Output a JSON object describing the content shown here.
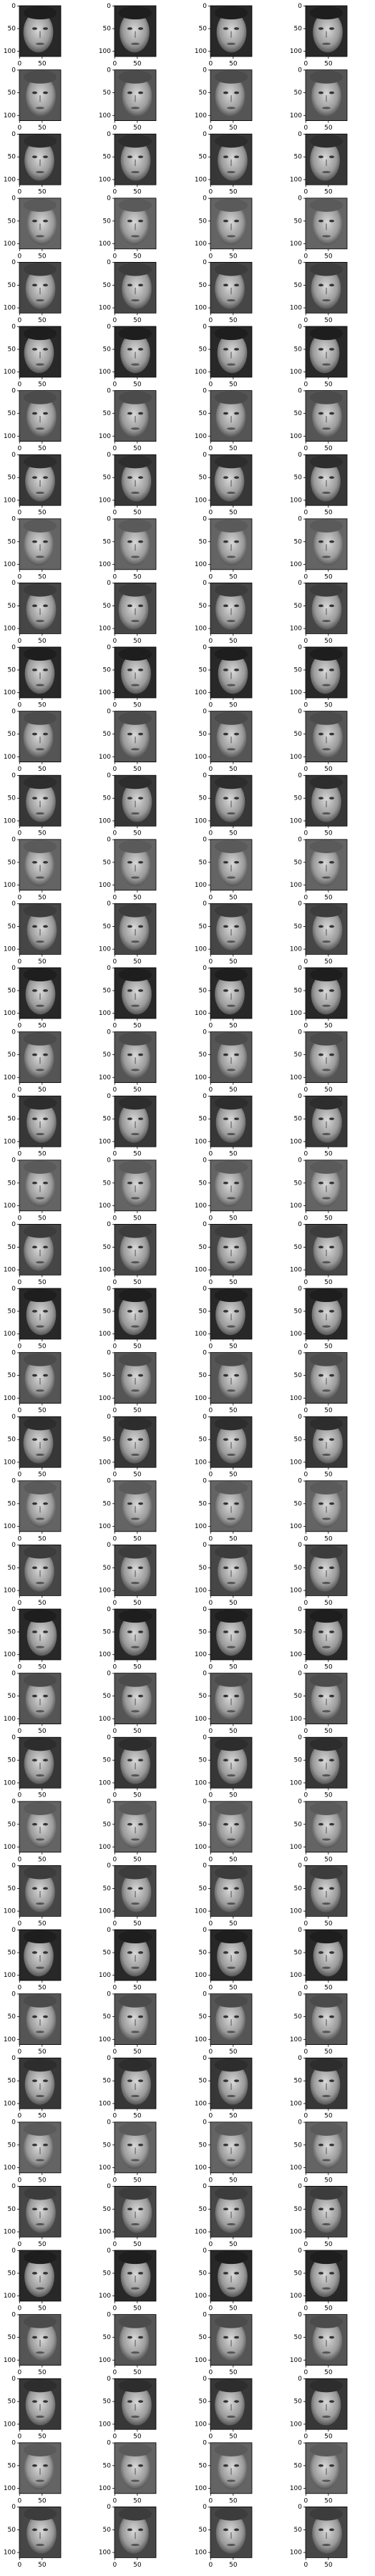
{
  "image_grid": {
    "rows": 40,
    "cols": 4,
    "xlim": [
      -0.5,
      91.5
    ],
    "ylim": [
      111.5,
      -0.5
    ],
    "xticks": [
      0,
      50
    ],
    "yticks": [
      0,
      50,
      100
    ]
  }
}
